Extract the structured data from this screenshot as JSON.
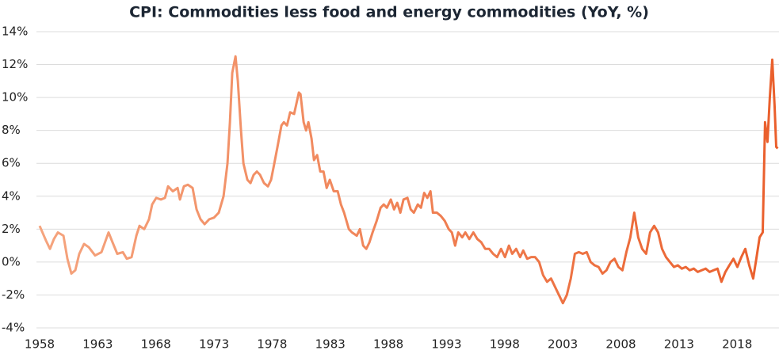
{
  "chart_data": {
    "type": "line",
    "title": "CPI: Commodities less food and energy commodities (YoY, %)",
    "x": [
      1958.0,
      1958.55,
      1958.89,
      1959.23,
      1959.57,
      1960.05,
      1960.39,
      1960.73,
      1961.07,
      1961.41,
      1961.82,
      1962.23,
      1962.77,
      1963.32,
      1963.93,
      1964.27,
      1964.68,
      1965.16,
      1965.5,
      1965.91,
      1966.32,
      1966.59,
      1967.0,
      1967.41,
      1967.68,
      1968.03,
      1968.43,
      1968.78,
      1969.05,
      1969.46,
      1969.87,
      1970.07,
      1970.41,
      1970.75,
      1971.16,
      1971.5,
      1971.84,
      1972.19,
      1972.59,
      1973.0,
      1973.41,
      1973.82,
      1974.16,
      1974.37,
      1974.57,
      1974.85,
      1975.05,
      1975.32,
      1975.53,
      1975.87,
      1976.14,
      1976.41,
      1976.69,
      1976.96,
      1977.3,
      1977.64,
      1977.91,
      1978.19,
      1978.46,
      1978.8,
      1979.01,
      1979.28,
      1979.55,
      1979.89,
      1980.3,
      1980.44,
      1980.71,
      1980.92,
      1981.12,
      1981.39,
      1981.6,
      1981.87,
      1982.14,
      1982.42,
      1982.69,
      1982.96,
      1983.3,
      1983.64,
      1983.92,
      1984.19,
      1984.6,
      1984.87,
      1985.28,
      1985.55,
      1985.83,
      1986.1,
      1986.37,
      1986.64,
      1986.99,
      1987.33,
      1987.6,
      1987.87,
      1988.21,
      1988.49,
      1988.76,
      1989.03,
      1989.3,
      1989.64,
      1989.92,
      1990.19,
      1990.53,
      1990.8,
      1991.08,
      1991.35,
      1991.62,
      1991.83,
      1992.17,
      1992.51,
      1992.85,
      1993.19,
      1993.46,
      1993.74,
      1994.01,
      1994.35,
      1994.62,
      1994.96,
      1995.31,
      1995.65,
      1995.99,
      1996.33,
      1996.67,
      1997.01,
      1997.35,
      1997.69,
      1998.03,
      1998.37,
      1998.65,
      1998.99,
      1999.33,
      1999.6,
      1999.94,
      2000.28,
      2000.62,
      2000.97,
      2001.31,
      2001.65,
      2001.99,
      2002.33,
      2002.67,
      2003.01,
      2003.35,
      2003.69,
      2004.04,
      2004.38,
      2004.72,
      2005.06,
      2005.4,
      2005.74,
      2006.08,
      2006.42,
      2006.76,
      2007.1,
      2007.45,
      2007.79,
      2008.13,
      2008.47,
      2008.81,
      2009.15,
      2009.49,
      2009.83,
      2010.17,
      2010.51,
      2010.86,
      2011.2,
      2011.54,
      2011.88,
      2012.22,
      2012.56,
      2012.9,
      2013.24,
      2013.58,
      2013.92,
      2014.27,
      2014.61,
      2014.95,
      2015.29,
      2015.63,
      2015.97,
      2016.31,
      2016.65,
      2016.99,
      2017.33,
      2017.68,
      2018.02,
      2018.36,
      2018.7,
      2019.04,
      2019.38,
      2019.65,
      2019.93,
      2020.2,
      2020.4,
      2020.61,
      2020.81,
      2021.02,
      2021.22,
      2021.36,
      2021.49
    ],
    "values": [
      2.2,
      1.3,
      0.8,
      1.4,
      1.8,
      1.6,
      0.2,
      -0.7,
      -0.5,
      0.5,
      1.1,
      0.9,
      0.4,
      0.6,
      1.8,
      1.2,
      0.5,
      0.6,
      0.2,
      0.3,
      1.6,
      2.2,
      2.0,
      2.6,
      3.5,
      3.9,
      3.8,
      3.9,
      4.6,
      4.3,
      4.5,
      3.8,
      4.6,
      4.7,
      4.5,
      3.2,
      2.6,
      2.3,
      2.6,
      2.7,
      3.0,
      4.0,
      6.0,
      8.5,
      11.5,
      12.5,
      11.0,
      8.0,
      6.0,
      5.0,
      4.8,
      5.3,
      5.5,
      5.3,
      4.8,
      4.6,
      5.0,
      6.0,
      7.0,
      8.3,
      8.5,
      8.3,
      9.1,
      9.0,
      10.3,
      10.2,
      8.5,
      8.0,
      8.5,
      7.5,
      6.2,
      6.5,
      5.5,
      5.5,
      4.5,
      5.0,
      4.3,
      4.3,
      3.5,
      3.0,
      2.0,
      1.8,
      1.6,
      2.0,
      1.0,
      0.8,
      1.2,
      1.8,
      2.5,
      3.3,
      3.5,
      3.3,
      3.8,
      3.2,
      3.6,
      3.0,
      3.8,
      3.9,
      3.2,
      3.0,
      3.5,
      3.3,
      4.2,
      3.9,
      4.3,
      3.0,
      3.0,
      2.8,
      2.5,
      2.0,
      1.8,
      1.0,
      1.8,
      1.5,
      1.8,
      1.4,
      1.8,
      1.4,
      1.2,
      0.8,
      0.8,
      0.5,
      0.3,
      0.8,
      0.3,
      1.0,
      0.5,
      0.8,
      0.3,
      0.7,
      0.2,
      0.3,
      0.3,
      0.0,
      -0.8,
      -1.2,
      -1.0,
      -1.5,
      -2.0,
      -2.5,
      -2.0,
      -1.0,
      0.5,
      0.6,
      0.5,
      0.6,
      0.0,
      -0.2,
      -0.3,
      -0.7,
      -0.5,
      0.0,
      0.2,
      -0.3,
      -0.5,
      0.6,
      1.5,
      3.0,
      1.5,
      0.8,
      0.5,
      1.8,
      2.2,
      1.8,
      0.8,
      0.3,
      0.0,
      -0.3,
      -0.2,
      -0.4,
      -0.3,
      -0.5,
      -0.4,
      -0.6,
      -0.5,
      -0.4,
      -0.6,
      -0.5,
      -0.4,
      -1.2,
      -0.6,
      -0.2,
      0.2,
      -0.3,
      0.3,
      0.8,
      -0.2,
      -1.0,
      0.2,
      1.5,
      1.8,
      8.5,
      7.3,
      10.0,
      12.3,
      9.5,
      7.0,
      6.9
    ],
    "colors": [
      "#f5a47e",
      "#ea5f2c"
    ],
    "xlim": [
      1958,
      2021.6
    ],
    "xticks": [
      1958,
      1963,
      1968,
      1973,
      1978,
      1983,
      1988,
      1993,
      1998,
      2003,
      2008,
      2013,
      2018
    ],
    "ylim": [
      -4,
      14
    ],
    "yticks": [
      {
        "value": 14,
        "label": "14%"
      },
      {
        "value": 12,
        "label": "12%"
      },
      {
        "value": 10,
        "label": "10%"
      },
      {
        "value": 8,
        "label": "8%"
      },
      {
        "value": 6,
        "label": "6%"
      },
      {
        "value": 4,
        "label": "4%"
      },
      {
        "value": 2,
        "label": "2%"
      },
      {
        "value": 0,
        "label": "0%"
      },
      {
        "value": -2,
        "label": "-2%"
      },
      {
        "value": -4,
        "label": "-4%"
      }
    ],
    "grid": true
  }
}
